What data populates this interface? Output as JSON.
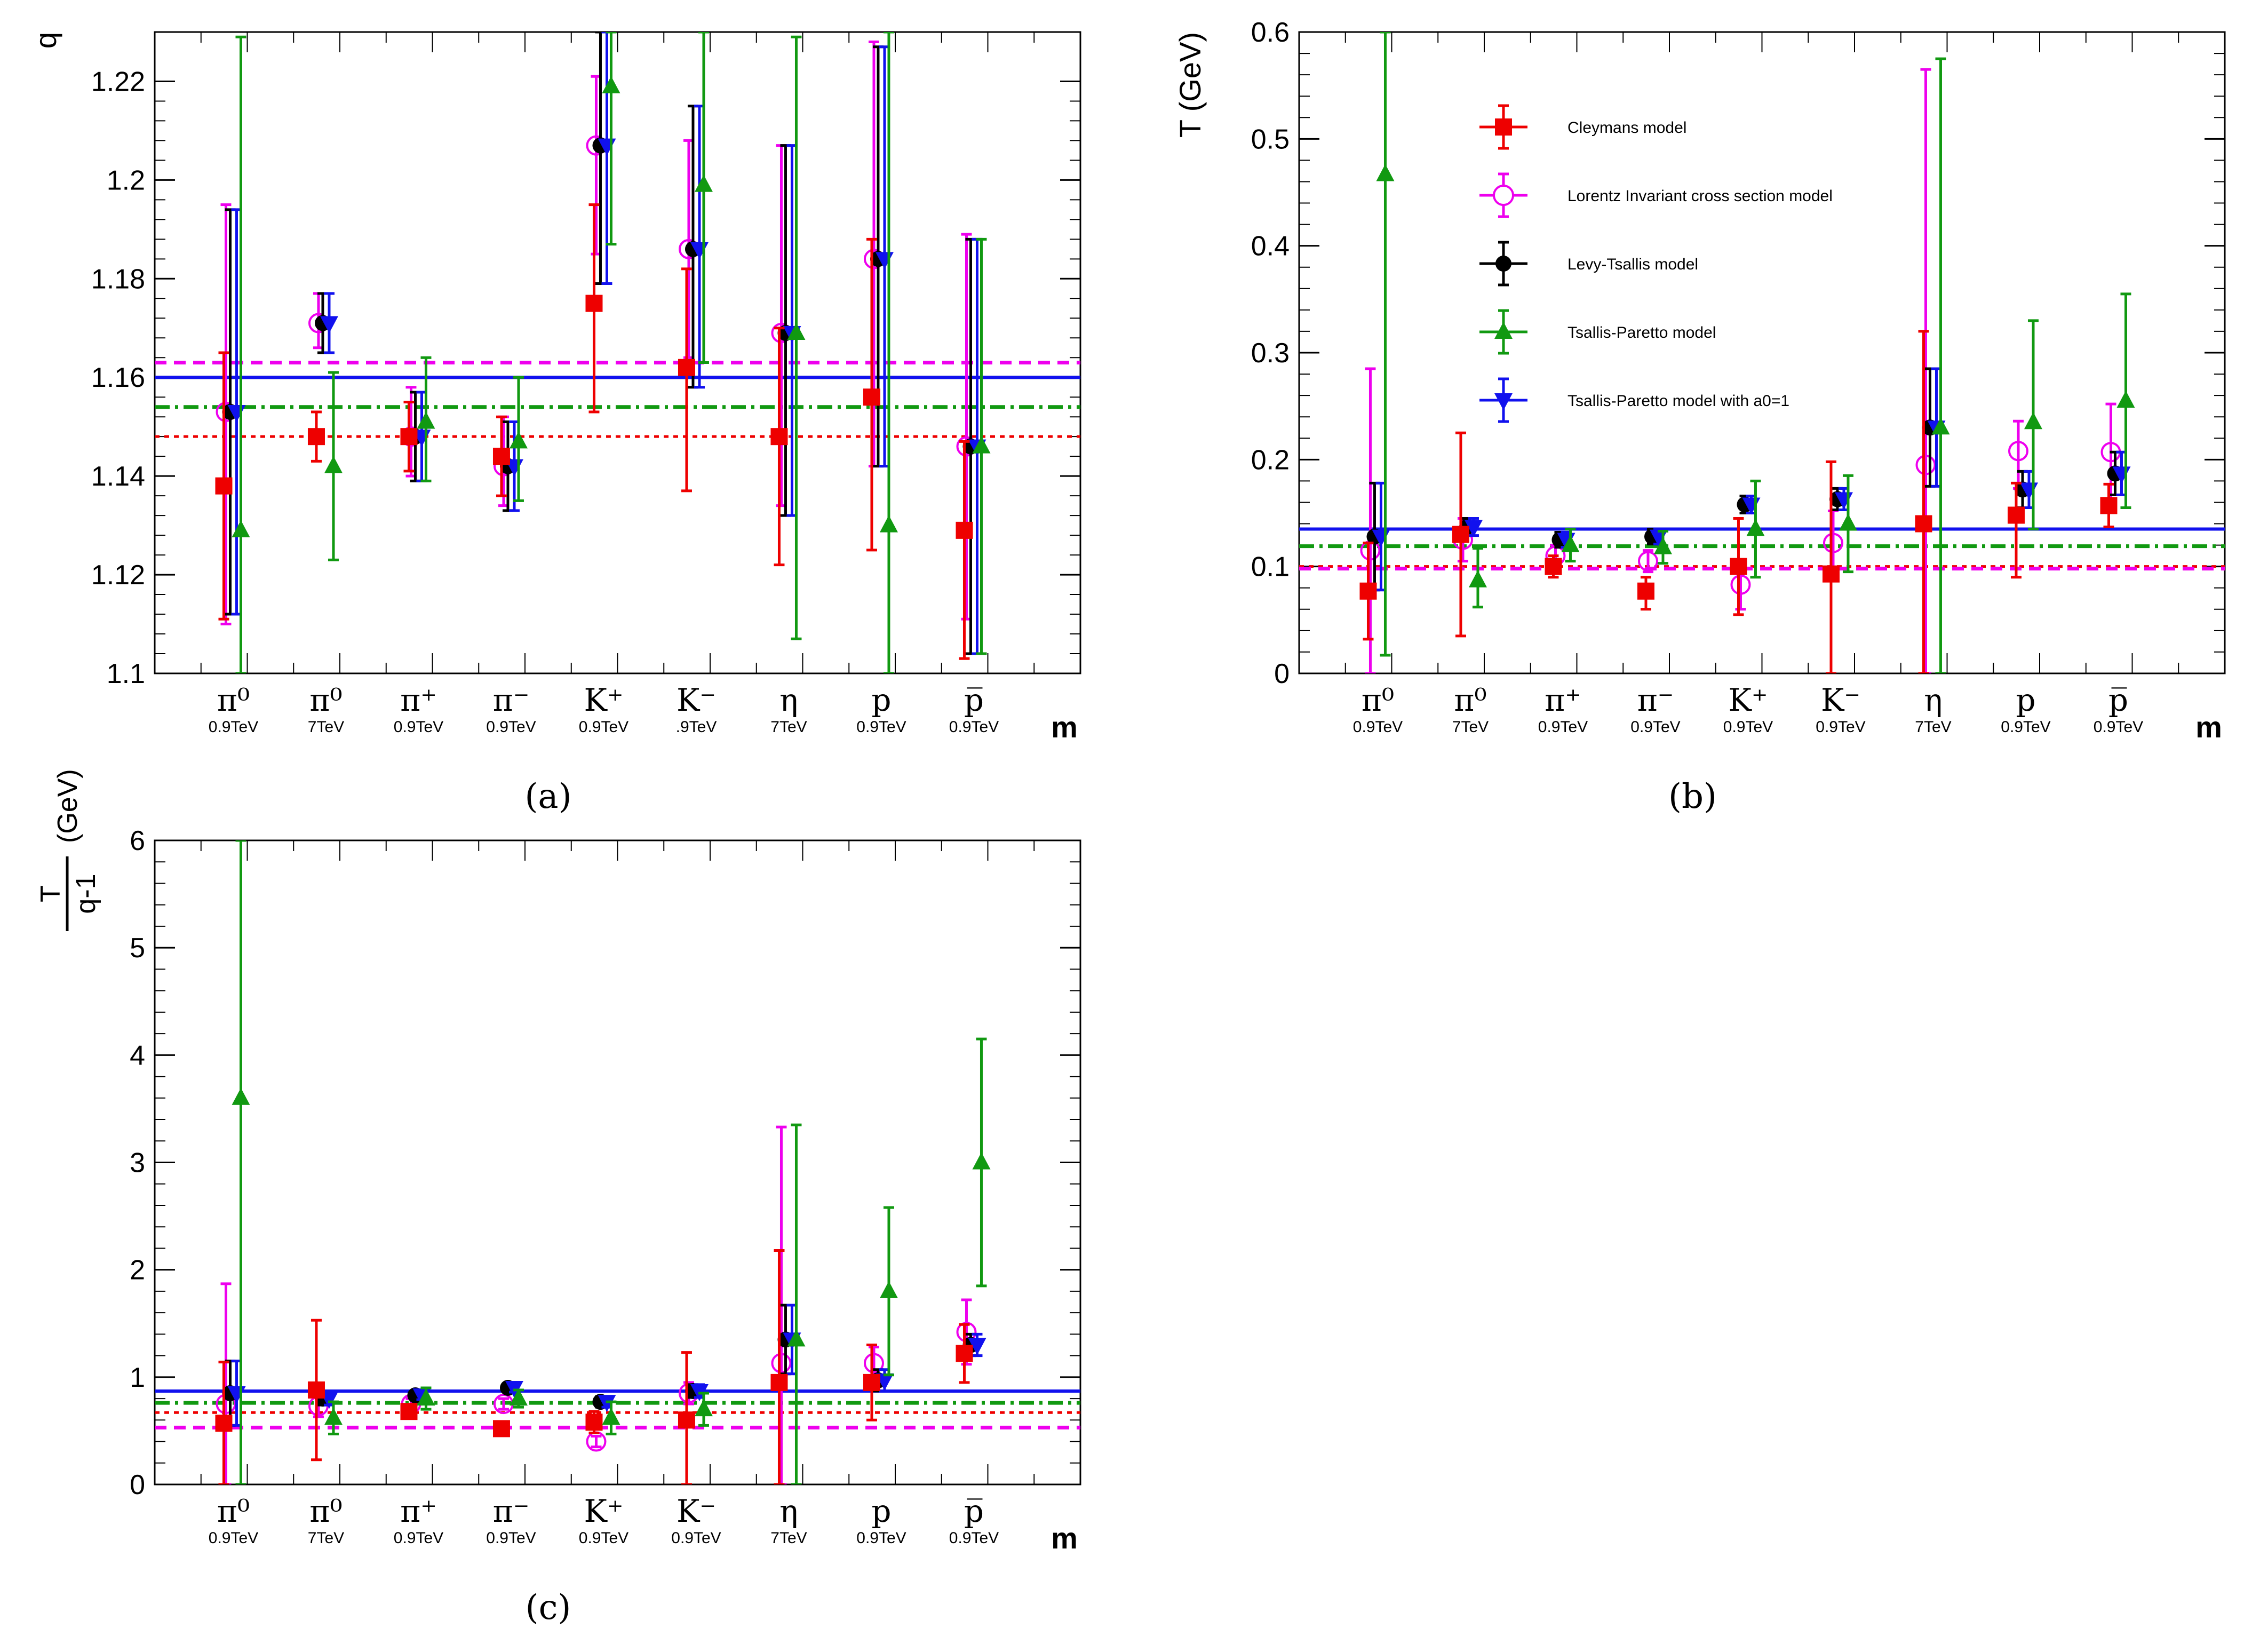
{
  "colors": {
    "cleymans": "#ee0000",
    "lorentz": "#ee00ee",
    "levy": "#000000",
    "tsallis": "#119911",
    "tsallis_a0": "#1111ee"
  },
  "icons": {
    "cleymans": "filled-square-marker",
    "lorentz": "open-circle-marker",
    "levy": "filled-circle-marker",
    "tsallis": "triangle-up-marker",
    "tsallis_a0": "triangle-down-marker"
  },
  "legend": {
    "entries": [
      {
        "key": "cleymans",
        "label": "Cleymans model"
      },
      {
        "key": "lorentz",
        "label": "Lorentz Invariant cross section model"
      },
      {
        "key": "levy",
        "label": "Levy-Tsallis model"
      },
      {
        "key": "tsallis",
        "label": "Tsallis-Paretto model"
      },
      {
        "key": "tsallis_a0",
        "label": "Tsallis-Paretto model  with a0=1"
      }
    ]
  },
  "chart_data": [
    {
      "id": "a",
      "type": "scatter",
      "panel_label": "(a)",
      "ylabel": "q",
      "xlabel": "m",
      "ylim": [
        1.1,
        1.23
      ],
      "yticks": [
        1.1,
        1.12,
        1.14,
        1.16,
        1.18,
        1.2,
        1.22
      ],
      "ytick_labels": [
        "1.1",
        "1.12",
        "1.14",
        "1.16",
        "1.18",
        "1.2",
        "1.22"
      ],
      "categories": [
        {
          "main": "π⁰",
          "sub": "0.9TeV"
        },
        {
          "main": "π⁰",
          "sub": "7TeV"
        },
        {
          "main": "π⁺",
          "sub": "0.9TeV"
        },
        {
          "main": "π⁻",
          "sub": "0.9TeV"
        },
        {
          "main": "K⁺",
          "sub": "0.9TeV"
        },
        {
          "main": "K⁻",
          "sub": ".9TeV"
        },
        {
          "main": "η",
          "sub": "7TeV"
        },
        {
          "main": "p",
          "sub": "0.9TeV"
        },
        {
          "main": "p̅",
          "sub": "0.9TeV"
        }
      ],
      "series": [
        {
          "key": "cleymans",
          "values": [
            1.138,
            1.148,
            1.148,
            1.144,
            1.175,
            1.162,
            1.148,
            1.156,
            1.129
          ],
          "err_low": [
            0.027,
            0.005,
            0.007,
            0.008,
            0.022,
            0.025,
            0.026,
            0.031,
            0.026
          ],
          "err_high": [
            0.027,
            0.005,
            0.007,
            0.008,
            0.02,
            0.02,
            0.022,
            0.032,
            0.018
          ],
          "mean": 1.148
        },
        {
          "key": "lorentz",
          "values": [
            1.153,
            1.171,
            1.148,
            1.142,
            1.207,
            1.186,
            1.169,
            1.184,
            1.146
          ],
          "err_low": [
            0.043,
            0.005,
            0.008,
            0.008,
            0.022,
            0.022,
            0.035,
            0.042,
            0.035
          ],
          "err_high": [
            0.042,
            0.006,
            0.01,
            0.01,
            0.014,
            0.022,
            0.038,
            0.044,
            0.043
          ],
          "mean": 1.163
        },
        {
          "key": "levy",
          "values": [
            1.153,
            1.171,
            1.148,
            1.142,
            1.207,
            1.186,
            1.169,
            1.184,
            1.146
          ],
          "err_low": [
            0.041,
            0.006,
            0.009,
            0.009,
            0.028,
            0.028,
            0.037,
            0.042,
            0.042
          ],
          "err_high": [
            0.041,
            0.006,
            0.009,
            0.009,
            0.023,
            0.029,
            0.038,
            0.043,
            0.042
          ],
          "mean": 1.16
        },
        {
          "key": "tsallis",
          "values": [
            1.129,
            1.142,
            1.151,
            1.147,
            1.219,
            1.199,
            1.169,
            1.13,
            1.146
          ],
          "err_low": [
            0.03,
            0.019,
            0.012,
            0.012,
            0.032,
            0.036,
            0.062,
            0.035,
            0.042
          ],
          "err_high": [
            0.1,
            0.019,
            0.013,
            0.013,
            0.013,
            0.031,
            0.06,
            0.1,
            0.042
          ],
          "mean": 1.154
        },
        {
          "key": "tsallis_a0",
          "values": [
            1.153,
            1.171,
            1.148,
            1.142,
            1.207,
            1.186,
            1.169,
            1.184,
            1.146
          ],
          "err_low": [
            0.041,
            0.006,
            0.009,
            0.009,
            0.028,
            0.028,
            0.037,
            0.042,
            0.042
          ],
          "err_high": [
            0.041,
            0.006,
            0.009,
            0.009,
            0.023,
            0.029,
            0.038,
            0.043,
            0.042
          ],
          "mean": 1.16
        }
      ]
    },
    {
      "id": "b",
      "type": "scatter",
      "panel_label": "(b)",
      "ylabel": "T (GeV)",
      "xlabel": "m",
      "ylim": [
        0,
        0.6
      ],
      "yticks": [
        0,
        0.1,
        0.2,
        0.3,
        0.4,
        0.5,
        0.6
      ],
      "ytick_labels": [
        "0",
        "0.1",
        "0.2",
        "0.3",
        "0.4",
        "0.5",
        "0.6"
      ],
      "categories": [
        {
          "main": "π⁰",
          "sub": "0.9TeV"
        },
        {
          "main": "π⁰",
          "sub": "7TeV"
        },
        {
          "main": "π⁺",
          "sub": "0.9TeV"
        },
        {
          "main": "π⁻",
          "sub": "0.9TeV"
        },
        {
          "main": "K⁺",
          "sub": "0.9TeV"
        },
        {
          "main": "K⁻",
          "sub": "0.9TeV"
        },
        {
          "main": "η",
          "sub": "7TeV"
        },
        {
          "main": "p",
          "sub": "0.9TeV"
        },
        {
          "main": "p̅",
          "sub": "0.9TeV"
        }
      ],
      "series": [
        {
          "key": "cleymans",
          "values": [
            0.077,
            0.13,
            0.1,
            0.077,
            0.1,
            0.093,
            0.14,
            0.148,
            0.157
          ],
          "err_low": [
            0.045,
            0.095,
            0.01,
            0.017,
            0.045,
            0.093,
            0.14,
            0.058,
            0.02
          ],
          "err_high": [
            0.045,
            0.095,
            0.01,
            0.013,
            0.045,
            0.105,
            0.18,
            0.03,
            0.02
          ],
          "mean": 0.1
        },
        {
          "key": "lorentz",
          "values": [
            0.115,
            0.125,
            0.11,
            0.105,
            0.083,
            0.122,
            0.195,
            0.208,
            0.207
          ],
          "err_low": [
            0.115,
            0.02,
            0.01,
            0.01,
            0.023,
            0.03,
            0.195,
            0.035,
            0.045
          ],
          "err_high": [
            0.17,
            0.02,
            0.01,
            0.01,
            0.023,
            0.03,
            0.37,
            0.028,
            0.045
          ],
          "mean": 0.098
        },
        {
          "key": "levy",
          "values": [
            0.128,
            0.137,
            0.125,
            0.128,
            0.158,
            0.163,
            0.23,
            0.172,
            0.187
          ],
          "err_low": [
            0.05,
            0.008,
            0.007,
            0.007,
            0.008,
            0.01,
            0.055,
            0.017,
            0.02
          ],
          "err_high": [
            0.05,
            0.008,
            0.007,
            0.007,
            0.008,
            0.01,
            0.055,
            0.017,
            0.02
          ],
          "mean": 0.135
        },
        {
          "key": "tsallis",
          "values": [
            0.467,
            0.087,
            0.12,
            0.118,
            0.135,
            0.14,
            0.23,
            0.235,
            0.255
          ],
          "err_low": [
            0.45,
            0.025,
            0.015,
            0.015,
            0.045,
            0.045,
            0.23,
            0.1,
            0.1
          ],
          "err_high": [
            0.4,
            0.03,
            0.015,
            0.015,
            0.045,
            0.045,
            0.345,
            0.095,
            0.1
          ],
          "mean": 0.119
        },
        {
          "key": "tsallis_a0",
          "values": [
            0.128,
            0.137,
            0.125,
            0.128,
            0.158,
            0.163,
            0.23,
            0.172,
            0.187
          ],
          "err_low": [
            0.05,
            0.008,
            0.007,
            0.007,
            0.008,
            0.01,
            0.055,
            0.017,
            0.02
          ],
          "err_high": [
            0.05,
            0.008,
            0.007,
            0.007,
            0.008,
            0.01,
            0.055,
            0.017,
            0.02
          ],
          "mean": 0.135
        }
      ]
    },
    {
      "id": "c",
      "type": "scatter",
      "panel_label": "(c)",
      "ylabel": "T / q-1 (GeV)",
      "ylabel_num": "T",
      "ylabel_den": "q-1",
      "ylabel_unit": "(GeV)",
      "xlabel": "m",
      "ylim": [
        0,
        6
      ],
      "yticks": [
        0,
        1,
        2,
        3,
        4,
        5,
        6
      ],
      "ytick_labels": [
        "0",
        "1",
        "2",
        "3",
        "4",
        "5",
        "6"
      ],
      "categories": [
        {
          "main": "π⁰",
          "sub": "0.9TeV"
        },
        {
          "main": "π⁰",
          "sub": "7TeV"
        },
        {
          "main": "π⁺",
          "sub": "0.9TeV"
        },
        {
          "main": "π⁻",
          "sub": "0.9TeV"
        },
        {
          "main": "K⁺",
          "sub": "0.9TeV"
        },
        {
          "main": "K⁻",
          "sub": "0.9TeV"
        },
        {
          "main": "η",
          "sub": "7TeV"
        },
        {
          "main": "p",
          "sub": "0.9TeV"
        },
        {
          "main": "p̅",
          "sub": "0.9TeV"
        }
      ],
      "series": [
        {
          "key": "cleymans",
          "values": [
            0.57,
            0.88,
            0.68,
            0.52,
            0.58,
            0.6,
            0.95,
            0.95,
            1.22
          ],
          "err_low": [
            0.57,
            0.65,
            0.06,
            0.06,
            0.1,
            0.6,
            0.95,
            0.35,
            0.27
          ],
          "err_high": [
            0.57,
            0.65,
            0.06,
            0.06,
            0.1,
            0.63,
            1.23,
            0.35,
            0.27
          ],
          "mean": 0.67
        },
        {
          "key": "lorentz",
          "values": [
            0.75,
            0.73,
            0.75,
            0.75,
            0.4,
            0.85,
            1.13,
            1.13,
            1.42
          ],
          "err_low": [
            0.75,
            0.1,
            0.05,
            0.05,
            0.05,
            0.1,
            1.13,
            0.15,
            0.3
          ],
          "err_high": [
            1.12,
            0.1,
            0.05,
            0.05,
            0.05,
            0.1,
            2.2,
            0.15,
            0.3
          ],
          "mean": 0.53
        },
        {
          "key": "levy",
          "values": [
            0.85,
            0.8,
            0.83,
            0.9,
            0.77,
            0.87,
            1.35,
            0.97,
            1.3
          ],
          "err_low": [
            0.3,
            0.06,
            0.04,
            0.04,
            0.05,
            0.06,
            0.32,
            0.1,
            0.1
          ],
          "err_high": [
            0.3,
            0.06,
            0.04,
            0.04,
            0.05,
            0.06,
            0.32,
            0.1,
            0.1
          ],
          "mean": 0.87
        },
        {
          "key": "tsallis",
          "values": [
            3.6,
            0.62,
            0.8,
            0.8,
            0.62,
            0.7,
            1.35,
            1.8,
            3.0
          ],
          "err_low": [
            3.6,
            0.15,
            0.1,
            0.08,
            0.15,
            0.15,
            1.35,
            0.78,
            1.15
          ],
          "err_high": [
            2.4,
            0.15,
            0.1,
            0.08,
            0.15,
            0.15,
            2.0,
            0.78,
            1.15
          ],
          "mean": 0.76
        },
        {
          "key": "tsallis_a0",
          "values": [
            0.85,
            0.8,
            0.83,
            0.9,
            0.77,
            0.87,
            1.35,
            0.97,
            1.3
          ],
          "err_low": [
            0.3,
            0.06,
            0.04,
            0.04,
            0.05,
            0.06,
            0.32,
            0.1,
            0.1
          ],
          "err_high": [
            0.3,
            0.06,
            0.04,
            0.04,
            0.05,
            0.06,
            0.32,
            0.1,
            0.1
          ],
          "mean": 0.87
        }
      ]
    }
  ]
}
